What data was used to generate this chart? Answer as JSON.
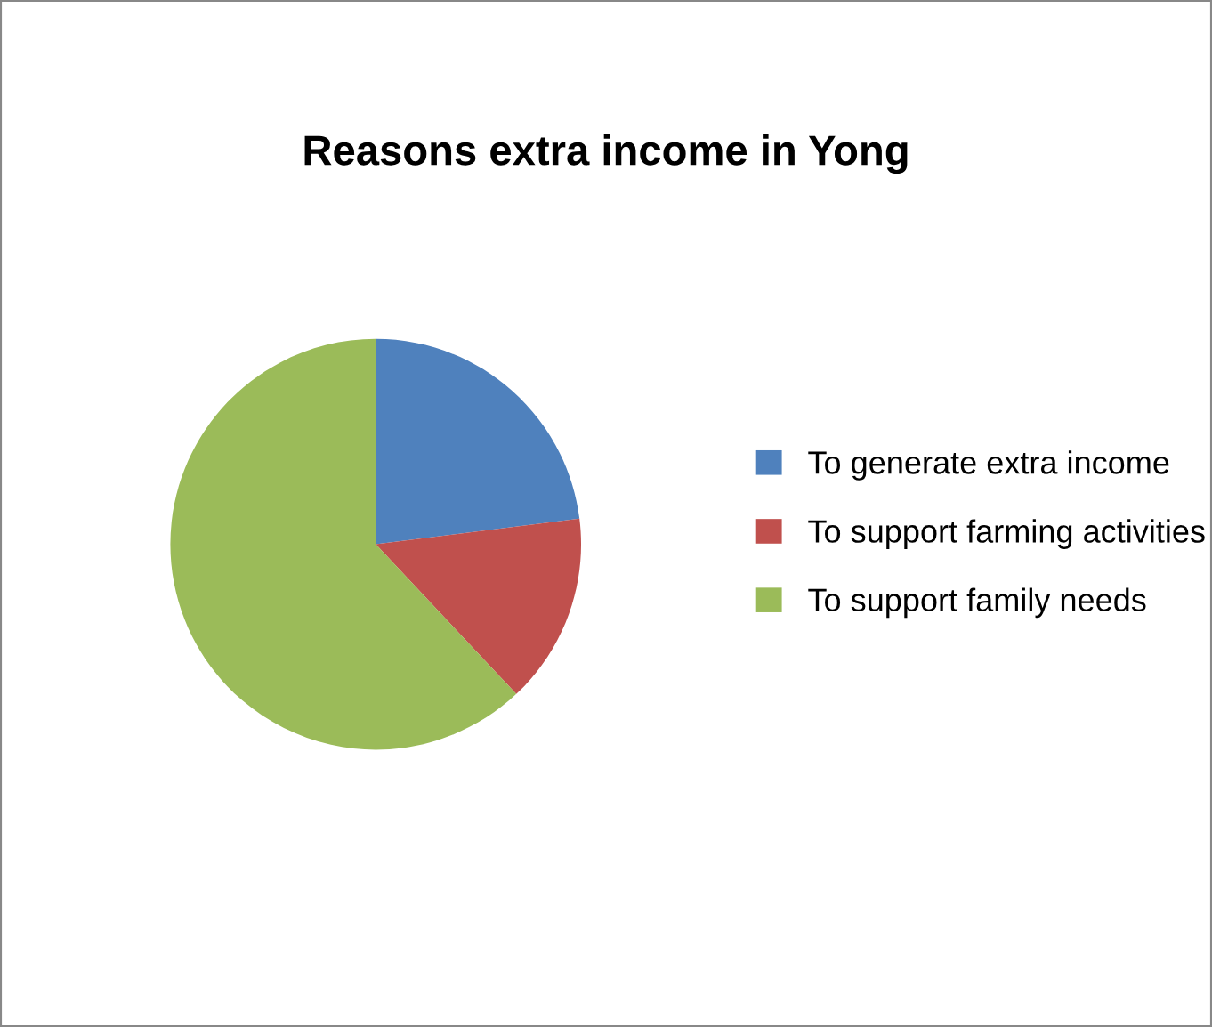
{
  "chart_data": {
    "type": "pie",
    "title": "Reasons extra income in Yong",
    "categories": [
      "To generate extra income",
      "To support farming activities",
      "To support family needs"
    ],
    "values": [
      23,
      15,
      62
    ],
    "colors": [
      "#4f81bd",
      "#c0504d",
      "#9bbb59"
    ],
    "legend": "right"
  }
}
